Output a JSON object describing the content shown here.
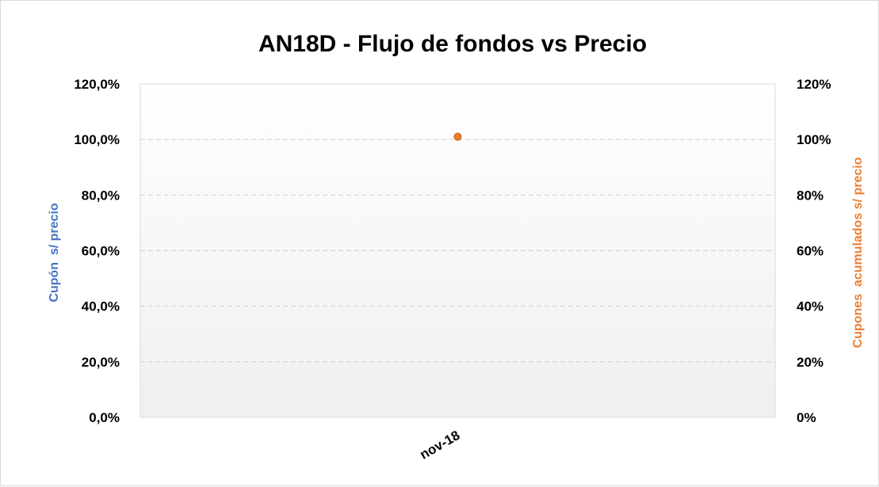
{
  "chart_data": {
    "type": "scatter",
    "title": "AN18D - Flujo de fondos vs Precio",
    "categories": [
      "nov-18"
    ],
    "y_left": {
      "label": "Cupón  s/ precio",
      "range": [
        0,
        1.2
      ],
      "ticks": [
        "0,0%",
        "20,0%",
        "40,0%",
        "60,0%",
        "80,0%",
        "100,0%",
        "120,0%"
      ]
    },
    "y_right": {
      "label": "Cupones  acumulados s/ precio",
      "range": [
        0,
        1.2
      ],
      "ticks": [
        "0%",
        "20%",
        "40%",
        "60%",
        "80%",
        "100%",
        "120%"
      ]
    },
    "series": [
      {
        "axis": "right",
        "color": "#ed7d31",
        "points": [
          {
            "x": "nov-18",
            "y": 1.01
          }
        ]
      }
    ],
    "grid": true,
    "legend": "none"
  }
}
